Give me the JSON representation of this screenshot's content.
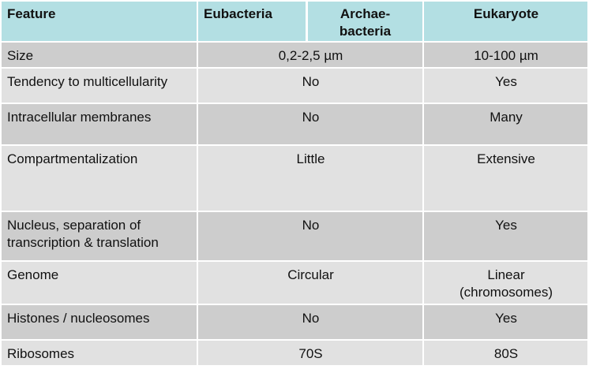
{
  "header": {
    "feature": "Feature",
    "eubacteria": "Eubacteria",
    "archaebacteria_line1": "Archae-",
    "archaebacteria_line2": "bacteria",
    "eukaryote": "Eukaryote"
  },
  "rows": [
    {
      "feature": "Size",
      "prokaryote": "0,2-2,5 µm",
      "eukaryote": "10-100 µm"
    },
    {
      "feature": "Tendency to multicellularity",
      "prokaryote": "No",
      "eukaryote": "Yes"
    },
    {
      "feature": "Intracellular membranes",
      "prokaryote": "No",
      "eukaryote": "Many"
    },
    {
      "feature": "Compartmentalization",
      "prokaryote": "Little",
      "eukaryote": "Extensive"
    },
    {
      "feature_line1": "Nucleus, separation of",
      "feature_line2": "transcription & translation",
      "prokaryote": "No",
      "eukaryote": "Yes"
    },
    {
      "feature": "Genome",
      "prokaryote": "Circular",
      "eukaryote_line1": "Linear",
      "eukaryote_line2": "(chromosomes)"
    },
    {
      "feature": "Histones / nucleosomes",
      "prokaryote": "No",
      "eukaryote": "Yes"
    },
    {
      "feature": "Ribosomes",
      "prokaryote": "70S",
      "eukaryote": "80S"
    }
  ],
  "colors": {
    "header_bg": "#b3dfe3",
    "row_dark": "#cdcdcd",
    "row_light": "#e1e1e1"
  }
}
